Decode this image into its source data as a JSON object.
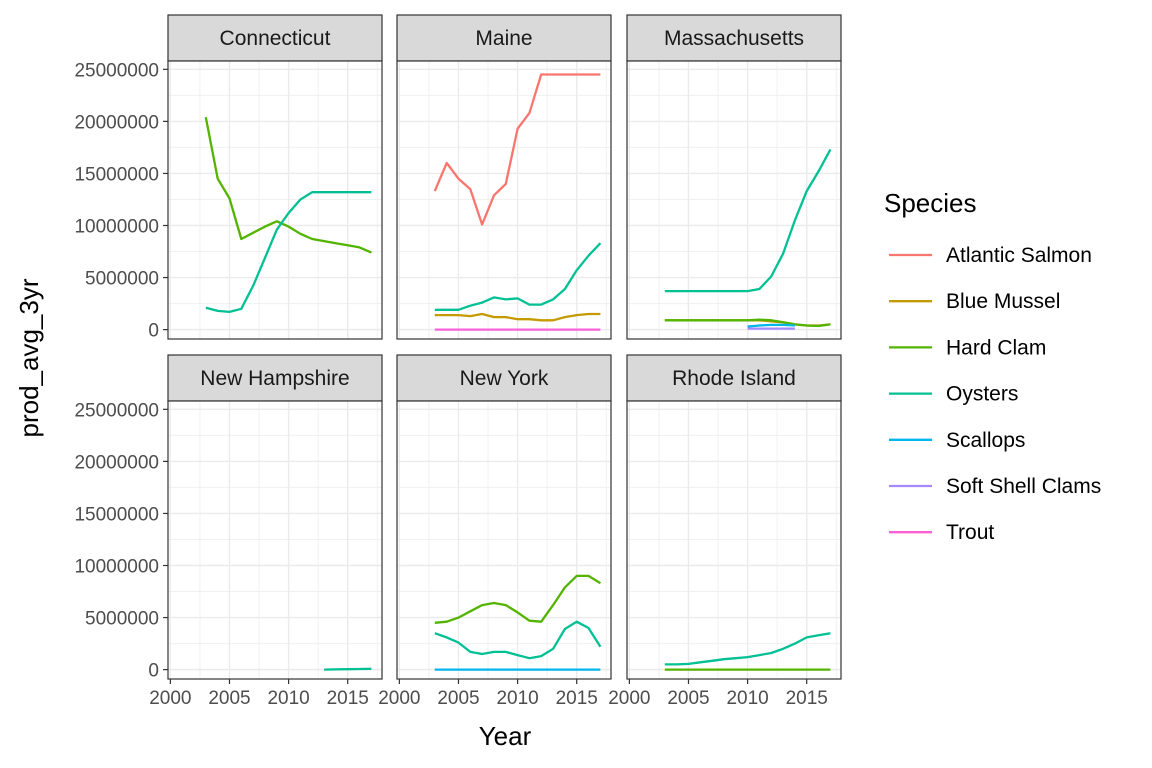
{
  "chart_data": {
    "type": "line",
    "xlabel": "Year",
    "ylabel": "prod_avg_3yr",
    "xlim": [
      1999.8,
      2017.9
    ],
    "ylim": [
      -900000,
      25800000
    ],
    "x_ticks": [
      2000,
      2005,
      2010,
      2015
    ],
    "x_tick_labels": [
      "2000",
      "2005",
      "2010",
      "2015"
    ],
    "y_ticks": [
      0,
      5000000,
      10000000,
      15000000,
      20000000,
      25000000
    ],
    "y_tick_labels": [
      "0",
      "5000000",
      "10000000",
      "15000000",
      "20000000",
      "25000000"
    ],
    "grid": true,
    "legend": {
      "title": "Species",
      "position": "right",
      "entries": [
        {
          "label": "Atlantic Salmon",
          "color": "#F8766D"
        },
        {
          "label": "Blue Mussel",
          "color": "#C49A00"
        },
        {
          "label": "Hard Clam",
          "color": "#53B400"
        },
        {
          "label": "Oysters",
          "color": "#00C094"
        },
        {
          "label": "Scallops",
          "color": "#00B6EB"
        },
        {
          "label": "Soft Shell Clams",
          "color": "#A58AFF"
        },
        {
          "label": "Trout",
          "color": "#FB61D7"
        }
      ]
    },
    "panels": [
      {
        "title": "Connecticut",
        "series": [
          {
            "name": "Hard Clam",
            "x": [
              2003,
              2004,
              2005,
              2006,
              2007,
              2008,
              2009,
              2010,
              2011,
              2012,
              2013,
              2014,
              2015,
              2016,
              2017
            ],
            "values": [
              20400000,
              14500000,
              12600000,
              8700000,
              9300000,
              9900000,
              10400000,
              9900000,
              9200000,
              8700000,
              8500000,
              8300000,
              8100000,
              7900000,
              7400000
            ]
          },
          {
            "name": "Oysters",
            "x": [
              2003,
              2004,
              2005,
              2006,
              2007,
              2008,
              2009,
              2010,
              2011,
              2012,
              2013,
              2014,
              2015,
              2016,
              2017
            ],
            "values": [
              2100000,
              1800000,
              1700000,
              2000000,
              4200000,
              6900000,
              9600000,
              11200000,
              12500000,
              13200000,
              13200000,
              13200000,
              13200000,
              13200000,
              13200000
            ]
          }
        ]
      },
      {
        "title": "Maine",
        "series": [
          {
            "name": "Atlantic Salmon",
            "x": [
              2003,
              2004,
              2005,
              2006,
              2007,
              2008,
              2009,
              2010,
              2011,
              2012,
              2013,
              2014,
              2015,
              2016,
              2017
            ],
            "values": [
              13300000,
              16000000,
              14500000,
              13500000,
              10100000,
              12900000,
              14000000,
              19300000,
              20800000,
              24500000,
              24500000,
              24500000,
              24500000,
              24500000,
              24500000
            ]
          },
          {
            "name": "Blue Mussel",
            "x": [
              2003,
              2004,
              2005,
              2006,
              2007,
              2008,
              2009,
              2010,
              2011,
              2012,
              2013,
              2014,
              2015,
              2016,
              2017
            ],
            "values": [
              1400000,
              1400000,
              1400000,
              1300000,
              1500000,
              1200000,
              1200000,
              1000000,
              1000000,
              900000,
              900000,
              1200000,
              1400000,
              1500000,
              1500000
            ]
          },
          {
            "name": "Oysters",
            "x": [
              2003,
              2004,
              2005,
              2006,
              2007,
              2008,
              2009,
              2010,
              2011,
              2012,
              2013,
              2014,
              2015,
              2016,
              2017
            ],
            "values": [
              1900000,
              1900000,
              1900000,
              2300000,
              2600000,
              3100000,
              2900000,
              3000000,
              2400000,
              2400000,
              2900000,
              3900000,
              5700000,
              7100000,
              8300000
            ]
          },
          {
            "name": "Trout",
            "x": [
              2003,
              2017
            ],
            "values": [
              0,
              0
            ]
          }
        ]
      },
      {
        "title": "Massachusetts",
        "series": [
          {
            "name": "Blue Mussel",
            "x": [
              2003,
              2010,
              2011,
              2012,
              2013,
              2014,
              2015,
              2016,
              2017
            ],
            "values": [
              900000,
              900000,
              900000,
              800000,
              700000,
              500000,
              400000,
              400000,
              500000
            ]
          },
          {
            "name": "Hard Clam",
            "x": [
              2003,
              2004,
              2005,
              2006,
              2007,
              2008,
              2009,
              2010,
              2011,
              2012,
              2013,
              2014,
              2015,
              2016,
              2017
            ],
            "values": [
              900000,
              900000,
              900000,
              900000,
              900000,
              900000,
              900000,
              900000,
              950000,
              900000,
              700000,
              500000,
              400000,
              350000,
              500000
            ]
          },
          {
            "name": "Oysters",
            "x": [
              2003,
              2004,
              2005,
              2006,
              2007,
              2008,
              2009,
              2010,
              2011,
              2012,
              2013,
              2014,
              2015,
              2016,
              2017
            ],
            "values": [
              3700000,
              3700000,
              3700000,
              3700000,
              3700000,
              3700000,
              3700000,
              3700000,
              3900000,
              5100000,
              7300000,
              10500000,
              13300000,
              15200000,
              17300000
            ]
          },
          {
            "name": "Scallops",
            "x": [
              2010,
              2011,
              2012,
              2013,
              2014
            ],
            "values": [
              300000,
              400000,
              450000,
              450000,
              400000
            ]
          },
          {
            "name": "Soft Shell Clams",
            "x": [
              2010,
              2011,
              2012,
              2013,
              2014
            ],
            "values": [
              100000,
              100000,
              100000,
              100000,
              100000
            ]
          }
        ]
      },
      {
        "title": "New Hampshire",
        "series": [
          {
            "name": "Oysters",
            "x": [
              2013,
              2014,
              2015,
              2016,
              2017
            ],
            "values": [
              0,
              20000,
              40000,
              60000,
              80000
            ]
          }
        ]
      },
      {
        "title": "New York",
        "series": [
          {
            "name": "Hard Clam",
            "x": [
              2003,
              2004,
              2005,
              2006,
              2007,
              2008,
              2009,
              2010,
              2011,
              2012,
              2013,
              2014,
              2015,
              2016,
              2017
            ],
            "values": [
              4500000,
              4600000,
              5000000,
              5600000,
              6200000,
              6400000,
              6200000,
              5500000,
              4700000,
              4600000,
              6200000,
              7900000,
              9000000,
              9000000,
              8300000
            ]
          },
          {
            "name": "Oysters",
            "x": [
              2003,
              2004,
              2005,
              2006,
              2007,
              2008,
              2009,
              2010,
              2011,
              2012,
              2013,
              2014,
              2015,
              2016,
              2017
            ],
            "values": [
              3500000,
              3100000,
              2600000,
              1700000,
              1500000,
              1700000,
              1700000,
              1400000,
              1100000,
              1300000,
              2000000,
              3900000,
              4600000,
              4000000,
              2200000
            ]
          },
          {
            "name": "Scallops",
            "x": [
              2003,
              2017
            ],
            "values": [
              0,
              0
            ]
          }
        ]
      },
      {
        "title": "Rhode Island",
        "series": [
          {
            "name": "Oysters",
            "x": [
              2003,
              2004,
              2005,
              2006,
              2007,
              2008,
              2009,
              2010,
              2011,
              2012,
              2013,
              2014,
              2015,
              2016,
              2017
            ],
            "values": [
              500000,
              500000,
              550000,
              700000,
              850000,
              1000000,
              1100000,
              1200000,
              1400000,
              1600000,
              2000000,
              2500000,
              3100000,
              3300000,
              3500000
            ]
          },
          {
            "name": "Hard Clam",
            "x": [
              2003,
              2017
            ],
            "values": [
              0,
              0
            ]
          }
        ]
      }
    ]
  }
}
